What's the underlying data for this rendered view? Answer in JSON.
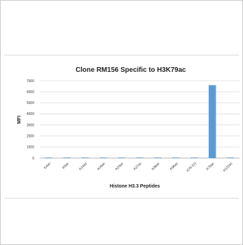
{
  "chart_data": {
    "type": "bar",
    "title": "Clone RM156 Specific to H3K79ac",
    "xlabel": "Histone H3.3 Peptides",
    "ylabel": "MFI",
    "ylim": [
      0,
      7000
    ],
    "yticks": [
      "0",
      "1000",
      "2000",
      "3000",
      "4000",
      "5000",
      "6000",
      "7000"
    ],
    "categories": [
      "K4ac",
      "K9ac",
      "K14ac",
      "K18ac",
      "K23ac",
      "K27ac",
      "K36ac",
      "K56ac",
      "K79 (U)",
      "K79ac",
      "K122ac"
    ],
    "values": [
      20,
      20,
      20,
      20,
      20,
      20,
      20,
      20,
      20,
      6600,
      20
    ],
    "grid": true,
    "bar_color": "#5b9bd5"
  }
}
